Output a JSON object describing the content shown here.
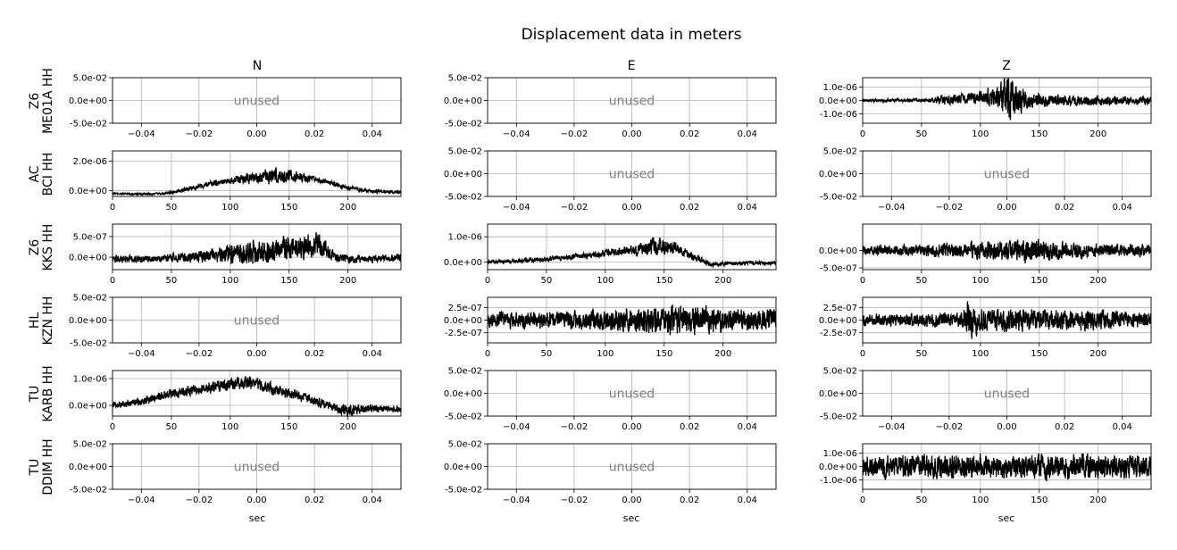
{
  "figure": {
    "title": "Displacement data in meters",
    "columns": [
      "N",
      "E",
      "Z"
    ],
    "xlabel": "sec",
    "unused_label": "unused",
    "trace_color": "#000000",
    "grid_color": "#b0b0b0",
    "unused_color": "#808080"
  },
  "rows": [
    {
      "network": "Z6",
      "station": "ME01A HH"
    },
    {
      "network": "AC",
      "station": "BCI HH"
    },
    {
      "network": "Z6",
      "station": "KKS HH"
    },
    {
      "network": "HL",
      "station": "KZN HH"
    },
    {
      "network": "TU",
      "station": "KARB HH"
    },
    {
      "network": "TU",
      "station": "DDIM HH"
    }
  ],
  "chart_data": [
    {
      "type": "line",
      "row": 0,
      "col": 0,
      "unused": true,
      "xlim": [
        -0.05,
        0.05
      ],
      "ylim": [
        -0.05,
        0.05
      ],
      "xticks": [
        -0.04,
        -0.02,
        0.0,
        0.02,
        0.04
      ],
      "xtick_labels": [
        "−0.04",
        "−0.02",
        "0.00",
        "0.02",
        "0.04"
      ],
      "yticks": [
        0.05,
        0.0,
        -0.05
      ],
      "ytick_labels": [
        "5.0e-02",
        "0.0e+00",
        "-5.0e-02"
      ],
      "grid": true
    },
    {
      "type": "line",
      "row": 0,
      "col": 1,
      "unused": true,
      "xlim": [
        -0.05,
        0.05
      ],
      "ylim": [
        -0.05,
        0.05
      ],
      "xticks": [
        -0.04,
        -0.02,
        0.0,
        0.02,
        0.04
      ],
      "xtick_labels": [
        "−0.04",
        "−0.02",
        "0.00",
        "0.02",
        "0.04"
      ],
      "yticks": [
        0.05,
        0.0,
        -0.05
      ],
      "ytick_labels": [
        "5.0e-02",
        "0.0e+00",
        "-5.0e-02"
      ],
      "grid": true
    },
    {
      "type": "line",
      "row": 0,
      "col": 2,
      "unused": false,
      "xlim": [
        0,
        245
      ],
      "ylim": [
        -1.7e-06,
        1.7e-06
      ],
      "xticks": [
        0,
        50,
        100,
        150,
        200
      ],
      "xtick_labels": [
        "0",
        "50",
        "100",
        "150",
        "200"
      ],
      "yticks": [
        1e-06,
        0,
        -1e-06
      ],
      "ytick_labels": [
        "1.0e-06",
        "0.0e+00",
        "-1.0e-06"
      ],
      "grid": true,
      "series": [
        {
          "x": [
            0,
            20,
            40,
            60,
            65,
            80,
            100,
            115,
            120,
            125,
            130,
            140,
            160,
            180,
            200,
            220,
            245
          ],
          "y": [
            0,
            0,
            0,
            0,
            0,
            1e-07,
            2e-07,
            3e-07,
            0,
            -2e-07,
            1e-07,
            0,
            0,
            0,
            0,
            0,
            0
          ],
          "noise": [
            1e-07,
            1e-07,
            1e-07,
            1.2e-07,
            3e-07,
            3e-07,
            4e-07,
            7e-07,
            1.3e-06,
            1.5e-06,
            1.1e-06,
            5e-07,
            3.5e-07,
            3e-07,
            3e-07,
            2.5e-07,
            2.5e-07
          ]
        }
      ]
    },
    {
      "type": "line",
      "row": 1,
      "col": 0,
      "unused": false,
      "xlim": [
        0,
        245
      ],
      "ylim": [
        -4e-07,
        2.7e-06
      ],
      "xticks": [
        0,
        50,
        100,
        150,
        200
      ],
      "xtick_labels": [
        "0",
        "50",
        "100",
        "150",
        "200"
      ],
      "yticks": [
        2e-06,
        0
      ],
      "ytick_labels": [
        "2.0e-06",
        "0.0e+00"
      ],
      "grid": true,
      "series": [
        {
          "x": [
            0,
            25,
            45,
            60,
            80,
            100,
            120,
            140,
            160,
            180,
            200,
            220,
            245
          ],
          "y": [
            -2e-07,
            -2.5e-07,
            -2e-07,
            5e-08,
            4e-07,
            7e-07,
            9e-07,
            1e-06,
            9e-07,
            6e-07,
            2e-07,
            -5e-08,
            -1e-07
          ],
          "noise": [
            4e-08,
            5e-08,
            5e-08,
            1e-07,
            1.5e-07,
            2e-07,
            3.5e-07,
            4.5e-07,
            2.5e-07,
            1.5e-07,
            1.2e-07,
            1e-07,
            8e-08
          ]
        }
      ]
    },
    {
      "type": "line",
      "row": 1,
      "col": 1,
      "unused": true,
      "xlim": [
        -0.05,
        0.05
      ],
      "ylim": [
        -0.05,
        0.05
      ],
      "xticks": [
        -0.04,
        -0.02,
        0.0,
        0.02,
        0.04
      ],
      "xtick_labels": [
        "−0.04",
        "−0.02",
        "0.00",
        "0.02",
        "0.04"
      ],
      "yticks": [
        0.05,
        0.0,
        -0.05
      ],
      "ytick_labels": [
        "5.0e-02",
        "0.0e+00",
        "-5.0e-02"
      ],
      "grid": true
    },
    {
      "type": "line",
      "row": 1,
      "col": 2,
      "unused": true,
      "xlim": [
        -0.05,
        0.05
      ],
      "ylim": [
        -0.05,
        0.05
      ],
      "xticks": [
        -0.04,
        -0.02,
        0.0,
        0.02,
        0.04
      ],
      "xtick_labels": [
        "−0.04",
        "−0.02",
        "0.00",
        "0.02",
        "0.04"
      ],
      "yticks": [
        0.05,
        0.0,
        -0.05
      ],
      "ytick_labels": [
        "5.0e-02",
        "0.0e+00",
        "-5.0e-02"
      ],
      "grid": true
    },
    {
      "type": "line",
      "row": 2,
      "col": 0,
      "unused": false,
      "xlim": [
        0,
        245
      ],
      "ylim": [
        -3e-07,
        8e-07
      ],
      "xticks": [
        0,
        50,
        100,
        150,
        200
      ],
      "xtick_labels": [
        "0",
        "50",
        "100",
        "150",
        "200"
      ],
      "yticks": [
        5e-07,
        0
      ],
      "ytick_labels": [
        "5.0e-07",
        "0.0e+00"
      ],
      "grid": true,
      "series": [
        {
          "x": [
            0,
            40,
            60,
            80,
            100,
            120,
            140,
            160,
            175,
            190,
            210,
            245
          ],
          "y": [
            -4e-08,
            -4e-08,
            0,
            2e-08,
            8e-08,
            1.2e-07,
            2e-07,
            2.5e-07,
            3.5e-07,
            -3e-08,
            -5e-08,
            0
          ],
          "noise": [
            8e-08,
            7e-08,
            1e-07,
            1.2e-07,
            2e-07,
            2.5e-07,
            2.5e-07,
            2.5e-07,
            2.5e-07,
            9e-08,
            7e-08,
            7e-08
          ]
        }
      ]
    },
    {
      "type": "line",
      "row": 2,
      "col": 1,
      "unused": false,
      "xlim": [
        0,
        245
      ],
      "ylim": [
        -3e-07,
        1.5e-06
      ],
      "xticks": [
        0,
        50,
        100,
        150,
        200
      ],
      "xtick_labels": [
        "0",
        "50",
        "100",
        "150",
        "200"
      ],
      "yticks": [
        1e-06,
        0
      ],
      "ytick_labels": [
        "1.0e-06",
        "0.0e+00"
      ],
      "grid": true,
      "series": [
        {
          "x": [
            0,
            30,
            60,
            90,
            120,
            140,
            160,
            175,
            190,
            210,
            245
          ],
          "y": [
            0,
            5e-08,
            1.5e-07,
            3e-07,
            4.5e-07,
            6e-07,
            5.5e-07,
            2e-07,
            -1e-07,
            -5e-08,
            -5e-08
          ],
          "noise": [
            5e-08,
            6e-08,
            8e-08,
            1e-07,
            1.5e-07,
            3e-07,
            2e-07,
            1.2e-07,
            8e-08,
            6e-08,
            6e-08
          ]
        }
      ]
    },
    {
      "type": "line",
      "row": 2,
      "col": 2,
      "unused": false,
      "xlim": [
        0,
        245
      ],
      "ylim": [
        -5.5e-07,
        7.5e-07
      ],
      "xticks": [
        0,
        50,
        100,
        150,
        200
      ],
      "xtick_labels": [
        "0",
        "50",
        "100",
        "150",
        "200"
      ],
      "yticks": [
        0,
        -5e-07
      ],
      "ytick_labels": [
        "0.0e+00",
        "-5.0e-07"
      ],
      "grid": true,
      "series": [
        {
          "x": [
            0,
            40,
            80,
            120,
            140,
            160,
            200,
            245
          ],
          "y": [
            0,
            0,
            0,
            0,
            0,
            0,
            0,
            0
          ],
          "noise": [
            1.2e-07,
            1.3e-07,
            1.8e-07,
            2.3e-07,
            2.8e-07,
            2.3e-07,
            1.6e-07,
            1.4e-07
          ]
        }
      ]
    },
    {
      "type": "line",
      "row": 3,
      "col": 0,
      "unused": true,
      "xlim": [
        -0.05,
        0.05
      ],
      "ylim": [
        -0.05,
        0.05
      ],
      "xticks": [
        -0.04,
        -0.02,
        0.0,
        0.02,
        0.04
      ],
      "xtick_labels": [
        "−0.04",
        "−0.02",
        "0.00",
        "0.02",
        "0.04"
      ],
      "yticks": [
        0.05,
        0.0,
        -0.05
      ],
      "ytick_labels": [
        "5.0e-02",
        "0.0e+00",
        "-5.0e-02"
      ],
      "grid": true
    },
    {
      "type": "line",
      "row": 3,
      "col": 1,
      "unused": false,
      "xlim": [
        0,
        245
      ],
      "ylim": [
        -4.5e-07,
        4.5e-07
      ],
      "xticks": [
        0,
        50,
        100,
        150,
        200
      ],
      "xtick_labels": [
        "0",
        "50",
        "100",
        "150",
        "200"
      ],
      "yticks": [
        2.5e-07,
        0,
        -2.5e-07
      ],
      "ytick_labels": [
        "2.5e-07",
        "0.0e+00",
        "-2.5e-07"
      ],
      "grid": true,
      "series": [
        {
          "x": [
            0,
            50,
            100,
            150,
            180,
            200,
            245
          ],
          "y": [
            0,
            0,
            0,
            0,
            0,
            0,
            0
          ],
          "noise": [
            1.3e-07,
            1.4e-07,
            1.7e-07,
            2.3e-07,
            2.6e-07,
            1.9e-07,
            1.6e-07
          ]
        }
      ]
    },
    {
      "type": "line",
      "row": 3,
      "col": 2,
      "unused": false,
      "xlim": [
        0,
        245
      ],
      "ylim": [
        -4.5e-07,
        4.5e-07
      ],
      "xticks": [
        0,
        50,
        100,
        150,
        200
      ],
      "xtick_labels": [
        "0",
        "50",
        "100",
        "150",
        "200"
      ],
      "yticks": [
        2.5e-07,
        0,
        -2.5e-07
      ],
      "ytick_labels": [
        "2.5e-07",
        "0.0e+00",
        "-2.5e-07"
      ],
      "grid": true,
      "series": [
        {
          "x": [
            0,
            50,
            85,
            90,
            100,
            150,
            200,
            245
          ],
          "y": [
            0,
            0,
            0,
            0,
            0,
            0,
            0,
            0
          ],
          "noise": [
            1e-07,
            1.1e-07,
            1.3e-07,
            3.5e-07,
            1.8e-07,
            1.8e-07,
            1.6e-07,
            1.2e-07
          ]
        }
      ]
    },
    {
      "type": "line",
      "row": 4,
      "col": 0,
      "unused": false,
      "xlim": [
        0,
        245
      ],
      "ylim": [
        -4e-07,
        1.3e-06
      ],
      "xticks": [
        0,
        50,
        100,
        150,
        200
      ],
      "xtick_labels": [
        "0",
        "50",
        "100",
        "150",
        "200"
      ],
      "yticks": [
        1e-06,
        0
      ],
      "ytick_labels": [
        "1.0e-06",
        "0.0e+00"
      ],
      "grid": true,
      "series": [
        {
          "x": [
            0,
            25,
            50,
            75,
            100,
            115,
            130,
            150,
            170,
            190,
            200,
            220,
            245
          ],
          "y": [
            0,
            1.5e-07,
            4.5e-07,
            6e-07,
            8e-07,
            9e-07,
            7e-07,
            4.5e-07,
            2e-07,
            -1e-07,
            -2e-07,
            -1e-07,
            -1.5e-07
          ],
          "noise": [
            1e-07,
            1.2e-07,
            1.5e-07,
            1.7e-07,
            2e-07,
            2.2e-07,
            2e-07,
            1.7e-07,
            1.4e-07,
            1.5e-07,
            2e-07,
            1.2e-07,
            1e-07
          ]
        }
      ]
    },
    {
      "type": "line",
      "row": 4,
      "col": 1,
      "unused": true,
      "xlim": [
        -0.05,
        0.05
      ],
      "ylim": [
        -0.05,
        0.05
      ],
      "xticks": [
        -0.04,
        -0.02,
        0.0,
        0.02,
        0.04
      ],
      "xtick_labels": [
        "−0.04",
        "−0.02",
        "0.00",
        "0.02",
        "0.04"
      ],
      "yticks": [
        0.05,
        0.0,
        -0.05
      ],
      "ytick_labels": [
        "5.0e-02",
        "0.0e+00",
        "-5.0e-02"
      ],
      "grid": true
    },
    {
      "type": "line",
      "row": 4,
      "col": 2,
      "unused": true,
      "xlim": [
        -0.05,
        0.05
      ],
      "ylim": [
        -0.05,
        0.05
      ],
      "xticks": [
        -0.04,
        -0.02,
        0.0,
        0.02,
        0.04
      ],
      "xtick_labels": [
        "−0.04",
        "−0.02",
        "0.00",
        "0.02",
        "0.04"
      ],
      "yticks": [
        0.05,
        0.0,
        -0.05
      ],
      "ytick_labels": [
        "5.0e-02",
        "0.0e+00",
        "-5.0e-02"
      ],
      "grid": true
    },
    {
      "type": "line",
      "row": 5,
      "col": 0,
      "unused": true,
      "xlim": [
        -0.05,
        0.05
      ],
      "ylim": [
        -0.05,
        0.05
      ],
      "xticks": [
        -0.04,
        -0.02,
        0.0,
        0.02,
        0.04
      ],
      "xtick_labels": [
        "−0.04",
        "−0.02",
        "0.00",
        "0.02",
        "0.04"
      ],
      "yticks": [
        0.05,
        0.0,
        -0.05
      ],
      "ytick_labels": [
        "5.0e-02",
        "0.0e+00",
        "-5.0e-02"
      ],
      "grid": true
    },
    {
      "type": "line",
      "row": 5,
      "col": 1,
      "unused": true,
      "xlim": [
        -0.05,
        0.05
      ],
      "ylim": [
        -0.05,
        0.05
      ],
      "xticks": [
        -0.04,
        -0.02,
        0.0,
        0.02,
        0.04
      ],
      "xtick_labels": [
        "−0.04",
        "−0.02",
        "0.00",
        "0.02",
        "0.04"
      ],
      "yticks": [
        0.05,
        0.0,
        -0.05
      ],
      "ytick_labels": [
        "5.0e-02",
        "0.0e+00",
        "-5.0e-02"
      ],
      "grid": true
    },
    {
      "type": "line",
      "row": 5,
      "col": 2,
      "unused": false,
      "xlim": [
        0,
        245
      ],
      "ylim": [
        -1.7e-06,
        1.7e-06
      ],
      "xticks": [
        0,
        50,
        100,
        150,
        200
      ],
      "xtick_labels": [
        "0",
        "50",
        "100",
        "150",
        "200"
      ],
      "yticks": [
        1e-06,
        0,
        -1e-06
      ],
      "ytick_labels": [
        "1.0e-06",
        "0.0e+00",
        "-1.0e-06"
      ],
      "grid": true,
      "series": [
        {
          "x": [
            0,
            60,
            120,
            180,
            245
          ],
          "y": [
            0,
            0,
            0,
            0,
            0
          ],
          "noise": [
            7e-07,
            7.5e-07,
            7.5e-07,
            7.5e-07,
            7e-07
          ]
        }
      ]
    }
  ]
}
